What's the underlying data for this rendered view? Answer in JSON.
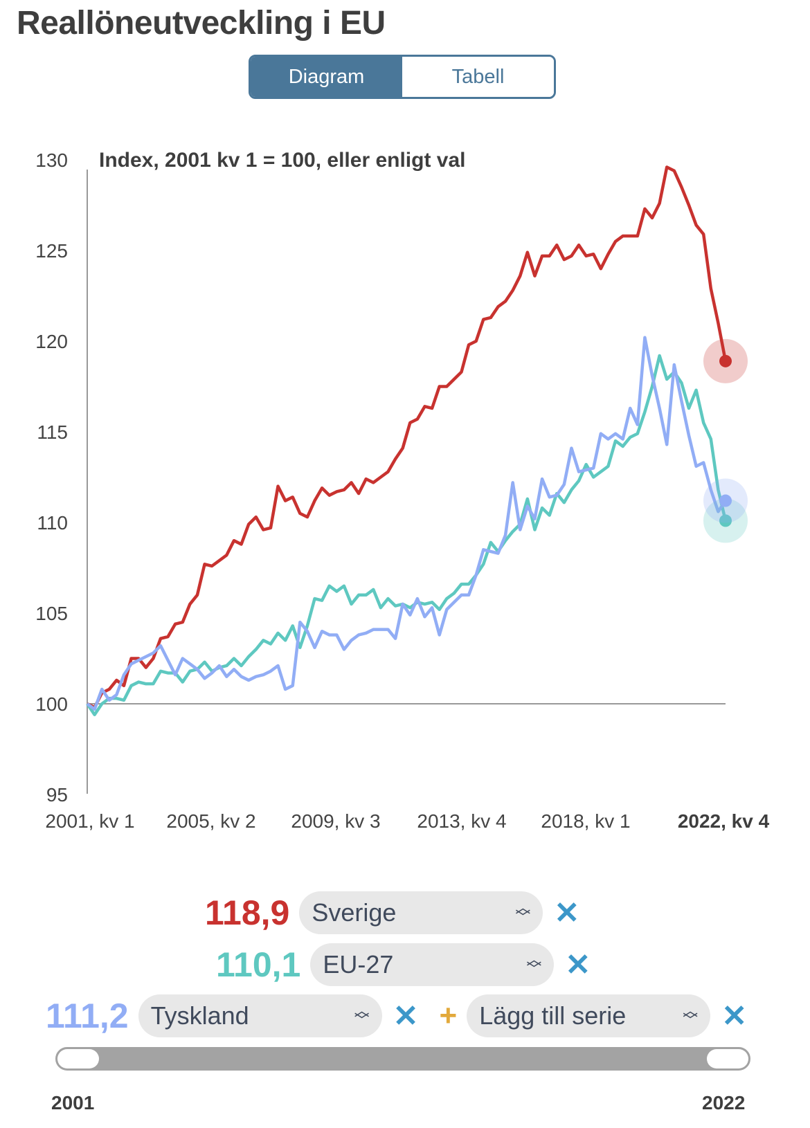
{
  "title": "Reallöneutveckling i EU",
  "tabs": {
    "diagram": "Diagram",
    "tabell": "Tabell",
    "active": "Diagram"
  },
  "chart_data": {
    "type": "line",
    "subtitle": "Index, 2001 kv 1 = 100, eller enligt val",
    "ylim": [
      95,
      130
    ],
    "yticks": [
      "130",
      "125",
      "120",
      "115",
      "110",
      "105",
      "100",
      "95"
    ],
    "xticks": [
      "2001, kv 1",
      "2005, kv 2",
      "2009, kv 3",
      "2013, kv 4",
      "2018, kv 1",
      "2022, kv 4"
    ],
    "x_range": [
      "2001 kv 1",
      "2022 kv 4"
    ],
    "series": [
      {
        "name": "Sverige",
        "color": "#c8322f",
        "values": [
          100,
          99.8,
          100.6,
          100.8,
          101.3,
          101,
          102.5,
          102.5,
          102,
          102.5,
          103.6,
          103.7,
          104.4,
          104.5,
          105.5,
          106,
          107.7,
          107.6,
          107.9,
          108.2,
          109,
          108.8,
          109.9,
          110.3,
          109.6,
          109.7,
          112,
          111.2,
          111.4,
          110.5,
          110.3,
          111.2,
          111.9,
          111.5,
          111.7,
          111.8,
          112.2,
          111.6,
          112.4,
          112.2,
          112.5,
          112.8,
          113.5,
          114.1,
          115.5,
          115.7,
          116.4,
          116.3,
          117.5,
          117.5,
          117.9,
          118.3,
          119.8,
          120,
          121.2,
          121.3,
          121.9,
          122.2,
          122.8,
          123.6,
          124.9,
          123.6,
          124.7,
          124.7,
          125.3,
          124.5,
          124.7,
          125.3,
          124.7,
          124.8,
          124,
          124.8,
          125.5,
          125.8,
          125.8,
          125.8,
          127.3,
          126.8,
          127.6,
          129.6,
          129.4,
          128.5,
          127.5,
          126.4,
          125.9,
          122.9,
          121,
          118.9
        ]
      },
      {
        "name": "EU-27",
        "color": "#5ec8c0",
        "values": [
          100,
          99.4,
          100,
          100.3,
          100.3,
          100.2,
          101,
          101.2,
          101.1,
          101.1,
          101.8,
          101.7,
          101.7,
          101.2,
          101.8,
          101.9,
          102.3,
          101.8,
          102,
          102.1,
          102.5,
          102.1,
          102.6,
          103,
          103.5,
          103.3,
          103.9,
          103.5,
          104.3,
          103.1,
          104.3,
          105.8,
          105.7,
          106.5,
          106.2,
          106.5,
          105.5,
          106,
          106,
          106.3,
          105.3,
          105.8,
          105.4,
          105.5,
          105.3,
          105.6,
          105.5,
          105.6,
          105.2,
          105.8,
          106.1,
          106.6,
          106.6,
          107.1,
          107.7,
          108.9,
          108.4,
          109,
          109.5,
          109.9,
          111.3,
          109.6,
          110.8,
          110.4,
          111.6,
          111.1,
          111.8,
          112.3,
          113.2,
          112.5,
          112.8,
          113.1,
          114.5,
          114.2,
          114.7,
          114.9,
          116.1,
          117.5,
          119.2,
          117.9,
          118.3,
          117.7,
          116.3,
          117.3,
          115.5,
          114.6,
          111.8,
          110.1
        ]
      },
      {
        "name": "Tyskland",
        "color": "#91adf5",
        "values": [
          100,
          99.7,
          100.8,
          100.2,
          100.5,
          101.6,
          102.2,
          102.4,
          102.6,
          102.8,
          103.2,
          102.4,
          101.6,
          102.5,
          102.2,
          101.9,
          101.4,
          101.7,
          102.1,
          101.5,
          101.9,
          101.5,
          101.3,
          101.5,
          101.6,
          101.8,
          102.1,
          100.8,
          101,
          104.5,
          104,
          103.1,
          104,
          103.8,
          103.8,
          103,
          103.5,
          103.8,
          103.9,
          104.1,
          104.1,
          104.1,
          103.6,
          105.5,
          104.9,
          105.8,
          104.8,
          105.3,
          103.8,
          105.2,
          105.6,
          106,
          106,
          107.1,
          108.5,
          108.4,
          108.3,
          109.3,
          112.2,
          109.6,
          110.9,
          110.2,
          112.4,
          111.4,
          111.5,
          112.1,
          114.1,
          112.8,
          112.9,
          113,
          114.9,
          114.6,
          114.9,
          114.6,
          116.3,
          115.4,
          120.2,
          118.1,
          116.3,
          114.3,
          118.7,
          116.7,
          114.8,
          113.1,
          113.3,
          111.8,
          110.6,
          111.2
        ]
      }
    ]
  },
  "legend": [
    {
      "value": "118,9",
      "series": "Sverige",
      "color": "#c8322f"
    },
    {
      "value": "110,1",
      "series": "EU-27",
      "color": "#5ec8c0"
    },
    {
      "value": "111,2",
      "series": "Tyskland",
      "color": "#91adf5"
    }
  ],
  "add_series": "Lägg till serie",
  "icons": {
    "remove": "×",
    "add": "+",
    "stepper": "chevron-up-down"
  },
  "range": {
    "start": "2001",
    "end": "2022"
  }
}
